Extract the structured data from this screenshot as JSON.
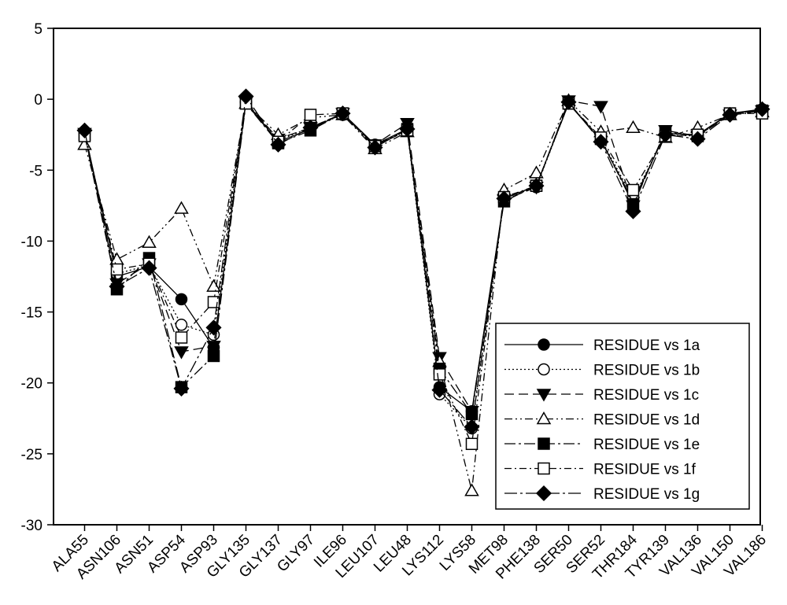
{
  "chart_data": {
    "type": "line",
    "categories": [
      "ALA55",
      "ASN106",
      "ASN51",
      "ASP54",
      "ASP93",
      "GLY135",
      "GLY137",
      "GLY97",
      "ILE96",
      "LEU107",
      "LEU48",
      "LYS112",
      "LYS58",
      "MET98",
      "PHE138",
      "SER50",
      "SER52",
      "THR184",
      "TYR139",
      "VAL136",
      "VAL150",
      "VAL186"
    ],
    "ylim": [
      -30,
      5
    ],
    "yticks": [
      5,
      0,
      -5,
      -10,
      -15,
      -20,
      -25,
      -30
    ],
    "xlabel": "",
    "ylabel": "",
    "title": "",
    "grid": false,
    "legend_position": "bottom-right",
    "series": [
      {
        "name": "RESIDUE vs 1a",
        "marker": "circle-filled",
        "dash": "solid",
        "values": [
          -2.3,
          -12.5,
          -11.8,
          -14.1,
          -17.5,
          -0.2,
          -3.0,
          -2.1,
          -1.0,
          -3.2,
          -2.1,
          -20.3,
          -22.0,
          -7.0,
          -6.1,
          -0.3,
          -2.9,
          -7.2,
          -2.4,
          -2.5,
          -1.0,
          -0.7
        ]
      },
      {
        "name": "RESIDUE vs 1b",
        "marker": "circle-open",
        "dash": "dot",
        "values": [
          -2.4,
          -12.3,
          -11.7,
          -15.9,
          -16.6,
          -0.2,
          -2.9,
          -2.0,
          -1.1,
          -3.3,
          -2.2,
          -20.8,
          -23.2,
          -7.0,
          -6.2,
          -0.3,
          -2.8,
          -7.0,
          -2.5,
          -2.6,
          -1.0,
          -0.8
        ]
      },
      {
        "name": "RESIDUE vs 1c",
        "marker": "triangle-down-filled",
        "dash": "longdash",
        "values": [
          -2.4,
          -13.0,
          -11.6,
          -17.8,
          -17.4,
          -0.2,
          -2.8,
          -2.0,
          -1.0,
          -3.2,
          -1.7,
          -18.2,
          -22.0,
          -7.1,
          -6.2,
          -0.1,
          -0.5,
          -7.5,
          -2.2,
          -2.6,
          -1.1,
          -0.8
        ]
      },
      {
        "name": "RESIDUE vs 1d",
        "marker": "triangle-up-open",
        "dash": "dashdotdot",
        "values": [
          -3.2,
          -11.3,
          -10.1,
          -7.7,
          -13.2,
          -0.3,
          -2.5,
          -1.3,
          -1.1,
          -3.5,
          -2.3,
          -18.5,
          -27.6,
          -6.4,
          -5.2,
          -0.1,
          -2.3,
          -2.0,
          -2.7,
          -2.0,
          -1.1,
          -0.9
        ]
      },
      {
        "name": "RESIDUE vs 1e",
        "marker": "square-filled",
        "dash": "longdashdot",
        "values": [
          -2.5,
          -13.4,
          -11.2,
          -20.3,
          -18.1,
          -0.3,
          -3.1,
          -2.2,
          -1.0,
          -3.3,
          -2.1,
          -19.0,
          -22.2,
          -7.2,
          -6.1,
          -0.3,
          -2.8,
          -7.4,
          -2.3,
          -2.6,
          -1.0,
          -0.8
        ]
      },
      {
        "name": "RESIDUE vs 1f",
        "marker": "square-open",
        "dash": "dashdot",
        "values": [
          -2.6,
          -12.0,
          -11.6,
          -16.8,
          -14.3,
          -0.3,
          -3.0,
          -1.1,
          -1.0,
          -3.3,
          -2.2,
          -19.4,
          -24.3,
          -6.9,
          -6.1,
          -0.3,
          -2.7,
          -6.4,
          -2.6,
          -2.5,
          -1.0,
          -1.0
        ]
      },
      {
        "name": "RESIDUE vs 1g",
        "marker": "diamond-filled",
        "dash": "dashdotlong",
        "values": [
          -2.2,
          -13.2,
          -11.9,
          -20.4,
          -16.1,
          0.2,
          -3.2,
          -2.0,
          -1.0,
          -3.4,
          -2.1,
          -20.5,
          -23.1,
          -7.0,
          -6.1,
          -0.2,
          -3.0,
          -7.9,
          -2.5,
          -2.8,
          -1.1,
          -0.7
        ]
      }
    ]
  }
}
